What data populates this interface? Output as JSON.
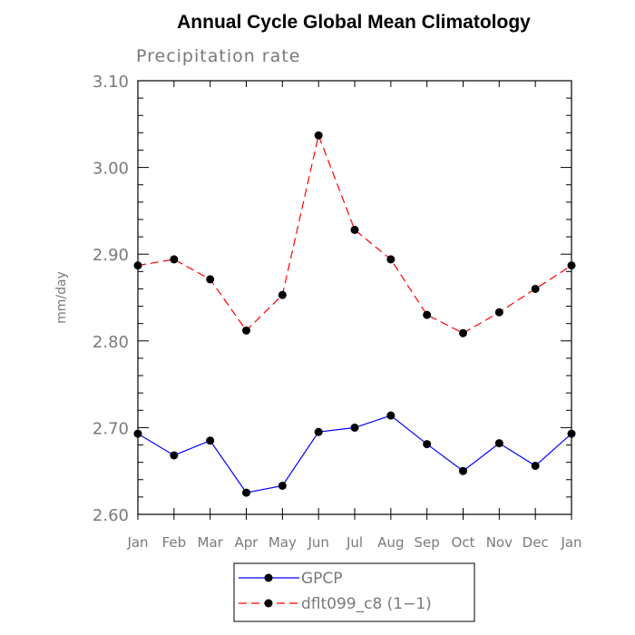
{
  "chart_data": {
    "type": "line",
    "title": "Annual Cycle Global Mean Climatology",
    "subtitle": "Precipitation rate",
    "xlabel": "",
    "ylabel": "mm/day",
    "categories": [
      "Jan",
      "Feb",
      "Mar",
      "Apr",
      "May",
      "Jun",
      "Jul",
      "Aug",
      "Sep",
      "Oct",
      "Nov",
      "Dec",
      "Jan"
    ],
    "ylim": [
      2.6,
      3.1
    ],
    "yticks": [
      2.6,
      2.7,
      2.8,
      2.9,
      3.0,
      3.1
    ],
    "ytick_labels": [
      "2.60",
      "2.70",
      "2.80",
      "2.90",
      "3.00",
      "3.10"
    ],
    "series": [
      {
        "name": "GPCP",
        "color": "#0000ff",
        "dash": "solid",
        "values": [
          2.693,
          2.668,
          2.685,
          2.625,
          2.633,
          2.695,
          2.7,
          2.714,
          2.681,
          2.65,
          2.682,
          2.656,
          2.693
        ]
      },
      {
        "name": "dflt099_c8 (1−1)",
        "color": "#ff0000",
        "dash": "dashed",
        "values": [
          2.887,
          2.894,
          2.871,
          2.812,
          2.853,
          3.037,
          2.928,
          2.894,
          2.83,
          2.809,
          2.833,
          2.86,
          2.887
        ]
      }
    ],
    "legend_position": "bottom"
  }
}
